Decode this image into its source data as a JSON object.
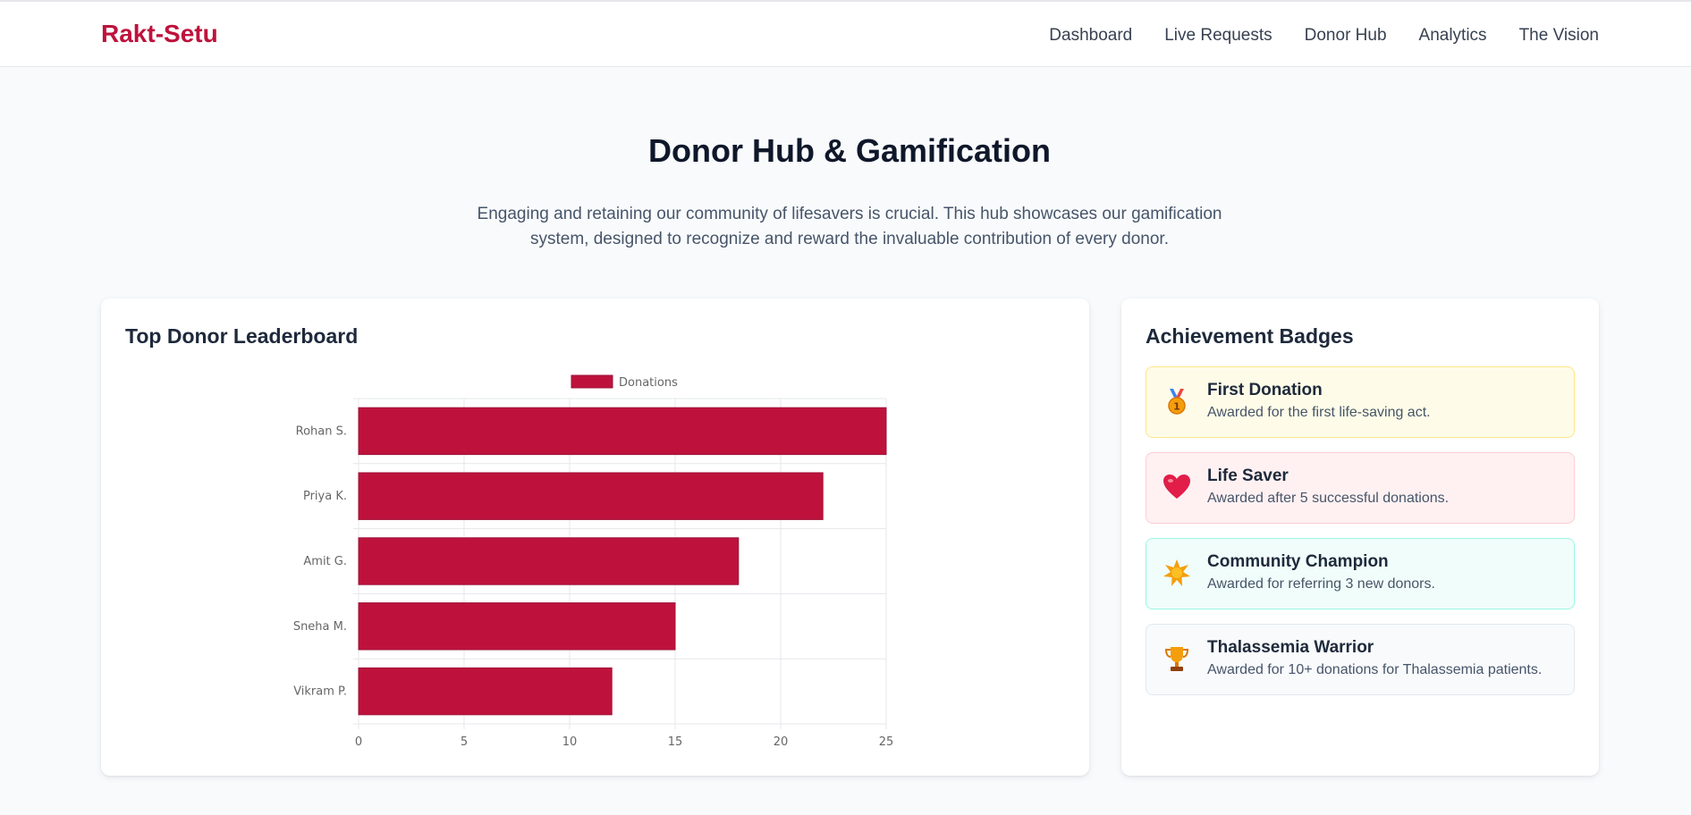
{
  "brand": "Rakt-Setu",
  "nav": {
    "items": [
      "Dashboard",
      "Live Requests",
      "Donor Hub",
      "Analytics",
      "The Vision"
    ]
  },
  "page": {
    "title": "Donor Hub & Gamification",
    "intro": "Engaging and retaining our community of lifesavers is crucial. This hub showcases our gamification system, designed to recognize and reward the invaluable contribution of every donor."
  },
  "leaderboard": {
    "title": "Top Donor Leaderboard"
  },
  "badges": {
    "title": "Achievement Badges",
    "items": [
      {
        "icon": "medal-icon",
        "title": "First Donation",
        "desc": "Awarded for the first life-saving act.",
        "bg": "#fefce8",
        "border": "#fde68a"
      },
      {
        "icon": "heart-icon",
        "title": "Life Saver",
        "desc": "Awarded after 5 successful donations.",
        "bg": "#fff1f2",
        "border": "#fecdd3"
      },
      {
        "icon": "star-icon",
        "title": "Community Champion",
        "desc": "Awarded for referring 3 new donors.",
        "bg": "#f0fdfa",
        "border": "#99f6e4"
      },
      {
        "icon": "trophy-icon",
        "title": "Thalassemia Warrior",
        "desc": "Awarded for 10+ donations for Thalassemia patients.",
        "bg": "#f8fafc",
        "border": "#e2e8f0"
      }
    ]
  },
  "colors": {
    "brand": "#be123c",
    "bar": "#be123c"
  },
  "chart_data": {
    "type": "bar",
    "orientation": "horizontal",
    "categories": [
      "Rohan S.",
      "Priya K.",
      "Amit G.",
      "Sneha M.",
      "Vikram P."
    ],
    "series": [
      {
        "name": "Donations",
        "values": [
          25,
          22,
          18,
          15,
          12
        ]
      }
    ],
    "xlim": [
      0,
      25
    ],
    "xticks": [
      0,
      5,
      10,
      15,
      20,
      25
    ],
    "grid": true,
    "legend": "top-center",
    "title": "",
    "xlabel": "",
    "ylabel": ""
  }
}
